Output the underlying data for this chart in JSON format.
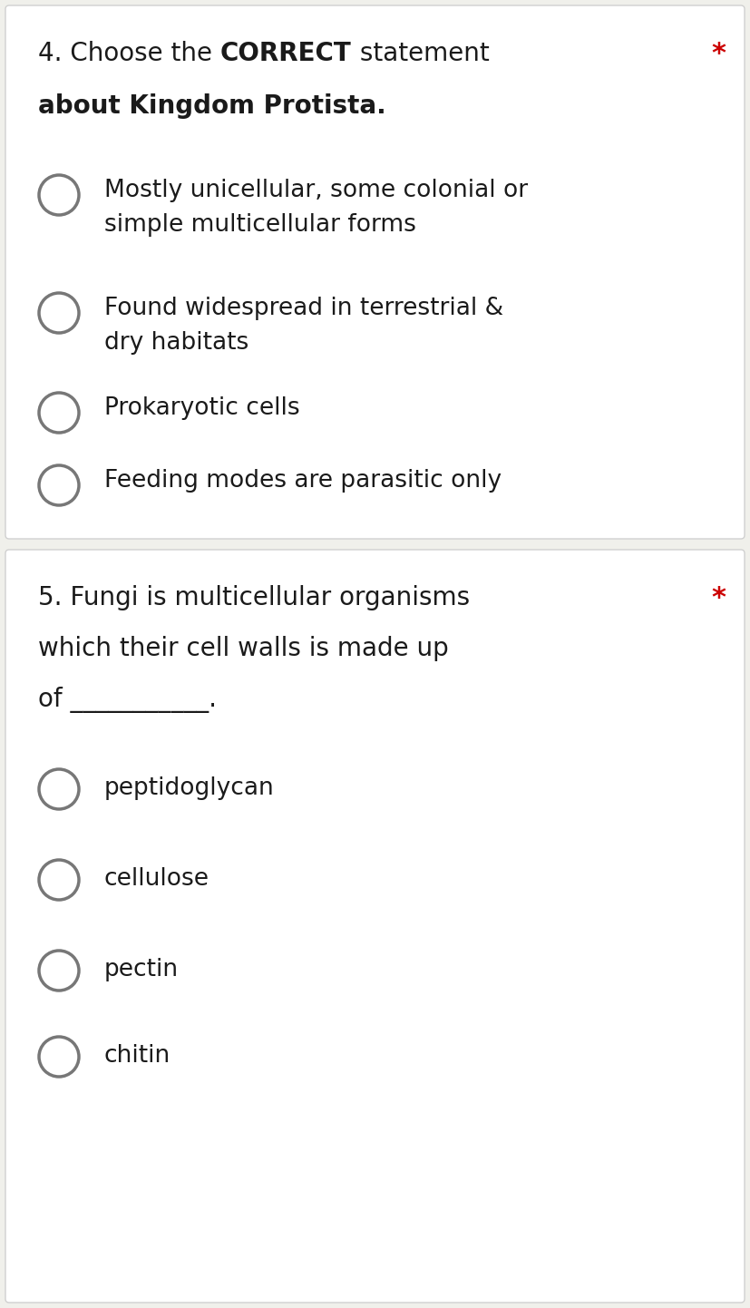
{
  "background_color": "#f0f0eb",
  "section1_bg": "#ffffff",
  "section2_bg": "#ffffff",
  "section1_edge": "#d0d0d0",
  "section2_edge": "#d0d0d0",
  "q1_prefix": "4. Choose the ",
  "q1_bold": "CORRECT",
  "q1_suffix": " statement",
  "q1_line2": "about Kingdom Protista.",
  "q1_options": [
    [
      "Mostly unicellular, some colonial or",
      "simple multicellular forms"
    ],
    [
      "Found widespread in terrestrial &",
      "dry habitats"
    ],
    [
      "Prokaryotic cells"
    ],
    [
      "Feeding modes are parasitic only"
    ]
  ],
  "q2_line1": "5. Fungi is multicellular organisms",
  "q2_line2": "which their cell walls is made up",
  "q2_line3": "of ———————————.",
  "q2_line3_plain": "of ___________.",
  "q2_options": [
    "peptidoglycan",
    "cellulose",
    "pectin",
    "chitin"
  ],
  "asterisk_color": "#cc0000",
  "circle_edge_color": "#777777",
  "circle_lw": 2.5,
  "text_color": "#1a1a1a",
  "font_family": "DejaVu Sans",
  "q_fontsize": 20,
  "opt_fontsize": 19
}
